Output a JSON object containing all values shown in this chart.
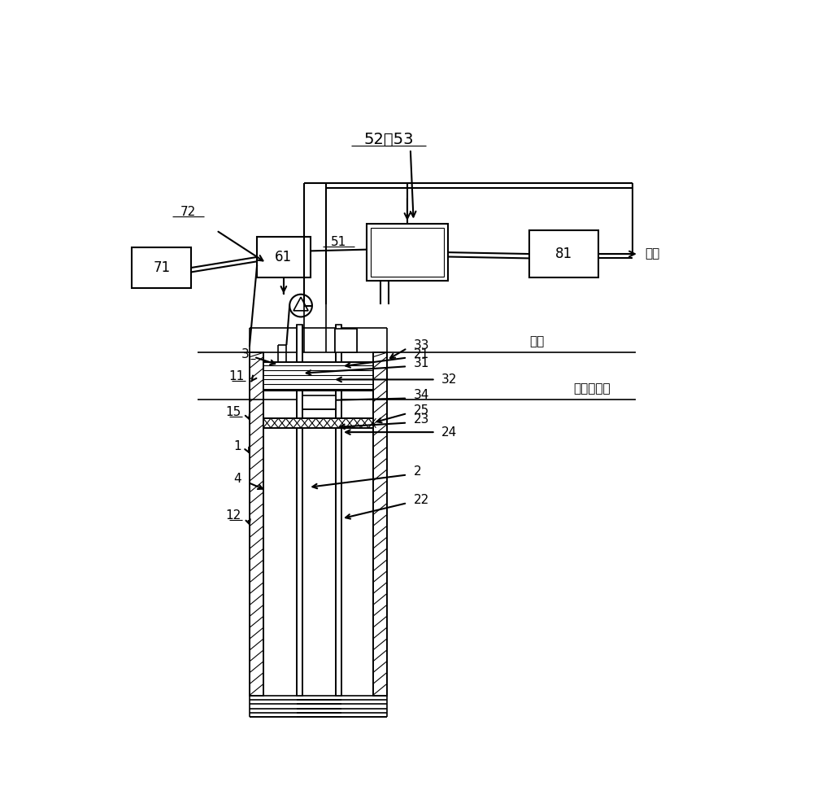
{
  "bg_color": "#ffffff",
  "line_color": "#000000",
  "fig_width": 10.0,
  "fig_height": 9.93,
  "labels": {
    "52_53": "52、53",
    "51": "51",
    "61": "61",
    "71": "71",
    "72": "72",
    "81": "81",
    "3": "3",
    "11": "11",
    "15": "15",
    "1": "1",
    "4": "4",
    "12": "12",
    "33": "33",
    "21": "21",
    "31": "31",
    "32": "32",
    "34": "34",
    "25": "25",
    "23": "23",
    "24": "24",
    "2": "2",
    "22": "22",
    "ground": "地面",
    "water_level": "地下水水位",
    "discharge": "排放"
  }
}
